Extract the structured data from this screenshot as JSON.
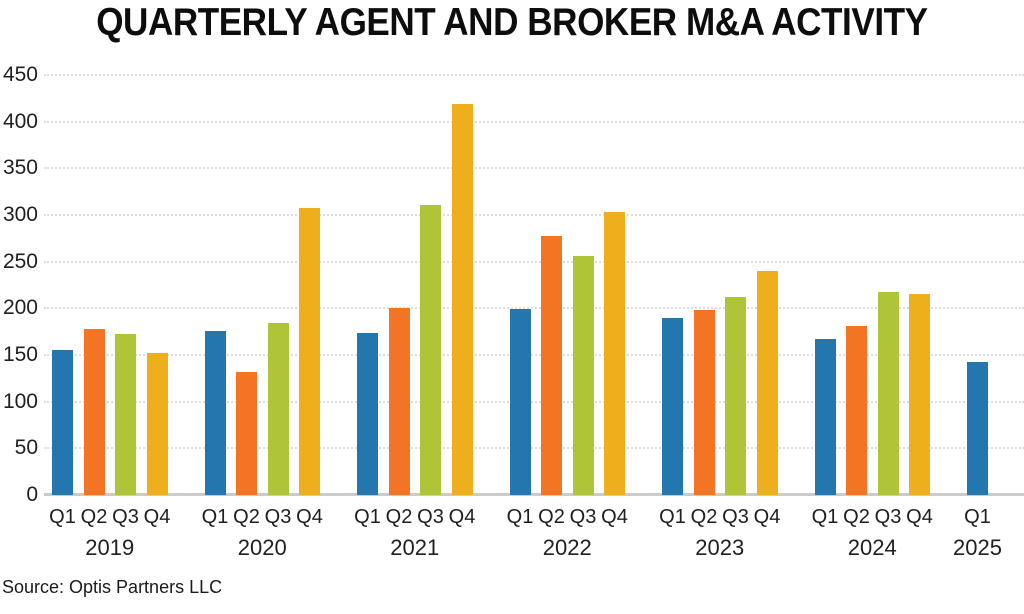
{
  "title": "QUARTERLY AGENT AND BROKER M&A ACTIVITY",
  "source": "Source: Optis Partners LLC",
  "chart_data": {
    "type": "bar",
    "title": "QUARTERLY AGENT AND BROKER M&A ACTIVITY",
    "xlabel": "",
    "ylabel": "",
    "ylim": [
      0,
      450
    ],
    "yticks": [
      0,
      50,
      100,
      150,
      200,
      250,
      300,
      350,
      400,
      450
    ],
    "grid": "horizontal-dotted",
    "legend": "none",
    "colors": {
      "Q1": "#2377AE",
      "Q2": "#F37422",
      "Q3": "#B0C438",
      "Q4": "#EDB01C"
    },
    "groups": [
      {
        "year": "2019",
        "quarters": [
          "Q1",
          "Q2",
          "Q3",
          "Q4"
        ],
        "values": [
          155,
          178,
          173,
          152
        ]
      },
      {
        "year": "2020",
        "quarters": [
          "Q1",
          "Q2",
          "Q3",
          "Q4"
        ],
        "values": [
          176,
          132,
          184,
          308
        ]
      },
      {
        "year": "2021",
        "quarters": [
          "Q1",
          "Q2",
          "Q3",
          "Q4"
        ],
        "values": [
          174,
          200,
          311,
          419
        ]
      },
      {
        "year": "2022",
        "quarters": [
          "Q1",
          "Q2",
          "Q3",
          "Q4"
        ],
        "values": [
          199,
          277,
          256,
          303
        ]
      },
      {
        "year": "2023",
        "quarters": [
          "Q1",
          "Q2",
          "Q3",
          "Q4"
        ],
        "values": [
          190,
          198,
          212,
          240
        ]
      },
      {
        "year": "2024",
        "quarters": [
          "Q1",
          "Q2",
          "Q3",
          "Q4"
        ],
        "values": [
          167,
          181,
          217,
          215
        ]
      },
      {
        "year": "2025",
        "quarters": [
          "Q1"
        ],
        "values": [
          142
        ]
      }
    ]
  }
}
